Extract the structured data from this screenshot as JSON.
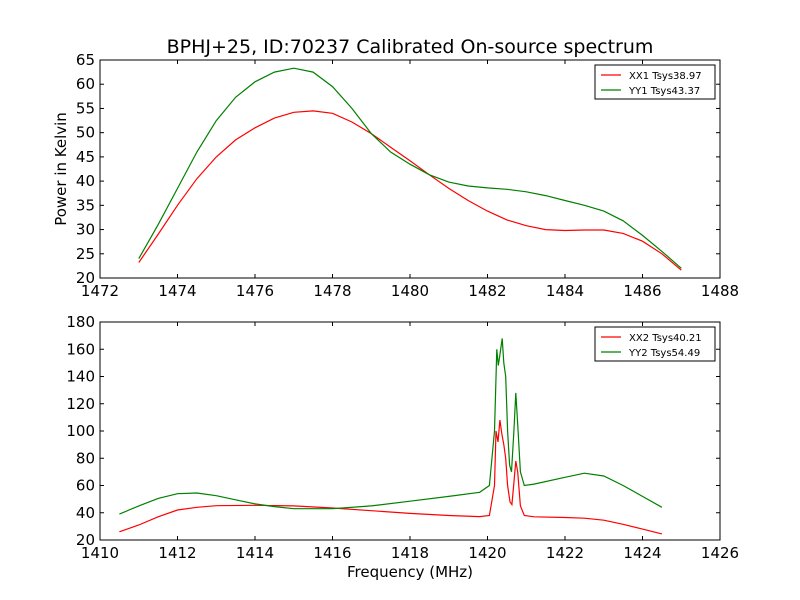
{
  "figure_title": "BPHJ+25, ID:70237 Calibrated On-source spectrum",
  "chart_data": [
    {
      "type": "line",
      "title": "BPHJ+25, ID:70237 Calibrated On-source spectrum",
      "xlabel": "",
      "ylabel": "Power in Kelvin",
      "xlim": [
        1472,
        1488
      ],
      "ylim": [
        20,
        65
      ],
      "xticks": [
        "1472",
        "1474",
        "1476",
        "1478",
        "1480",
        "1482",
        "1484",
        "1486",
        "1488"
      ],
      "yticks": [
        "20",
        "25",
        "30",
        "35",
        "40",
        "45",
        "50",
        "55",
        "60",
        "65"
      ],
      "legend_position": "top-right",
      "grid": false,
      "series": [
        {
          "name": "XX1 Tsys38.97",
          "color": "#ff0000",
          "x": [
            1473.0,
            1473.5,
            1474.0,
            1474.5,
            1475.0,
            1475.5,
            1476.0,
            1476.5,
            1477.0,
            1477.5,
            1478.0,
            1478.5,
            1479.0,
            1479.5,
            1480.0,
            1480.5,
            1481.0,
            1481.5,
            1482.0,
            1482.5,
            1483.0,
            1483.5,
            1484.0,
            1484.5,
            1485.0,
            1485.5,
            1486.0,
            1486.5,
            1487.0
          ],
          "y": [
            23.2,
            29.0,
            35.0,
            40.5,
            45.0,
            48.5,
            51.0,
            53.0,
            54.2,
            54.5,
            54.0,
            52.2,
            49.8,
            47.0,
            44.2,
            41.3,
            38.5,
            36.0,
            33.8,
            32.0,
            30.8,
            30.0,
            29.8,
            29.9,
            29.9,
            29.2,
            27.6,
            25.0,
            21.6
          ]
        },
        {
          "name": "YY1 Tsys43.37",
          "color": "#008000",
          "x": [
            1473.0,
            1473.5,
            1474.0,
            1474.5,
            1475.0,
            1475.5,
            1476.0,
            1476.5,
            1477.0,
            1477.5,
            1478.0,
            1478.5,
            1479.0,
            1479.5,
            1480.0,
            1480.5,
            1481.0,
            1481.5,
            1482.0,
            1482.5,
            1483.0,
            1483.5,
            1484.0,
            1484.5,
            1485.0,
            1485.5,
            1486.0,
            1486.5,
            1487.0
          ],
          "y": [
            24.0,
            31.0,
            38.5,
            46.0,
            52.5,
            57.3,
            60.5,
            62.5,
            63.3,
            62.5,
            59.5,
            55.0,
            49.8,
            46.0,
            43.5,
            41.3,
            39.8,
            39.0,
            38.6,
            38.3,
            37.8,
            37.0,
            36.0,
            35.0,
            33.8,
            31.8,
            28.8,
            25.5,
            22.0
          ]
        }
      ]
    },
    {
      "type": "line",
      "title": "",
      "xlabel": "Frequency (MHz)",
      "ylabel": "",
      "xlim": [
        1410,
        1426
      ],
      "ylim": [
        20,
        180
      ],
      "xticks": [
        "1410",
        "1412",
        "1414",
        "1416",
        "1418",
        "1420",
        "1422",
        "1424",
        "1426"
      ],
      "yticks": [
        "20",
        "40",
        "60",
        "80",
        "100",
        "120",
        "140",
        "160",
        "180"
      ],
      "legend_position": "top-right",
      "grid": false,
      "series": [
        {
          "name": "XX2 Tsys40.21",
          "color": "#ff0000",
          "x": [
            1410.5,
            1411.0,
            1411.5,
            1412.0,
            1412.5,
            1413.0,
            1414.0,
            1415.0,
            1416.0,
            1417.0,
            1418.0,
            1419.0,
            1419.8,
            1420.05,
            1420.18,
            1420.22,
            1420.27,
            1420.32,
            1420.37,
            1420.42,
            1420.47,
            1420.52,
            1420.58,
            1420.63,
            1420.68,
            1420.73,
            1420.78,
            1420.85,
            1420.95,
            1421.2,
            1422.0,
            1422.5,
            1423.0,
            1423.5,
            1424.0,
            1424.5
          ],
          "y": [
            26,
            31,
            37,
            42,
            44,
            45.2,
            45.5,
            45,
            43.5,
            41.5,
            39.5,
            38,
            37.2,
            38,
            60,
            100,
            92,
            108,
            98,
            90,
            80,
            60,
            48,
            46,
            62,
            78,
            70,
            45,
            38,
            37,
            36.5,
            36,
            34.5,
            31.5,
            28,
            24.5
          ]
        },
        {
          "name": "YY2 Tsys54.49",
          "color": "#008000",
          "x": [
            1410.5,
            1411.0,
            1411.5,
            1412.0,
            1412.5,
            1413.0,
            1413.5,
            1414.0,
            1414.5,
            1415.0,
            1416.0,
            1417.0,
            1418.0,
            1419.0,
            1419.8,
            1420.05,
            1420.18,
            1420.24,
            1420.28,
            1420.33,
            1420.38,
            1420.42,
            1420.47,
            1420.52,
            1420.57,
            1420.62,
            1420.68,
            1420.73,
            1420.78,
            1420.85,
            1420.95,
            1421.2,
            1422.0,
            1422.5,
            1423.0,
            1423.5,
            1424.0,
            1424.5
          ],
          "y": [
            39,
            45,
            50.5,
            54,
            54.5,
            52.5,
            49.5,
            46.5,
            44.5,
            43,
            43,
            45,
            48.5,
            52,
            55,
            60,
            100,
            160,
            148,
            158,
            168,
            150,
            140,
            100,
            75,
            70,
            100,
            128,
            105,
            70,
            60,
            61,
            66,
            69,
            67,
            60,
            52,
            44
          ]
        }
      ]
    }
  ]
}
